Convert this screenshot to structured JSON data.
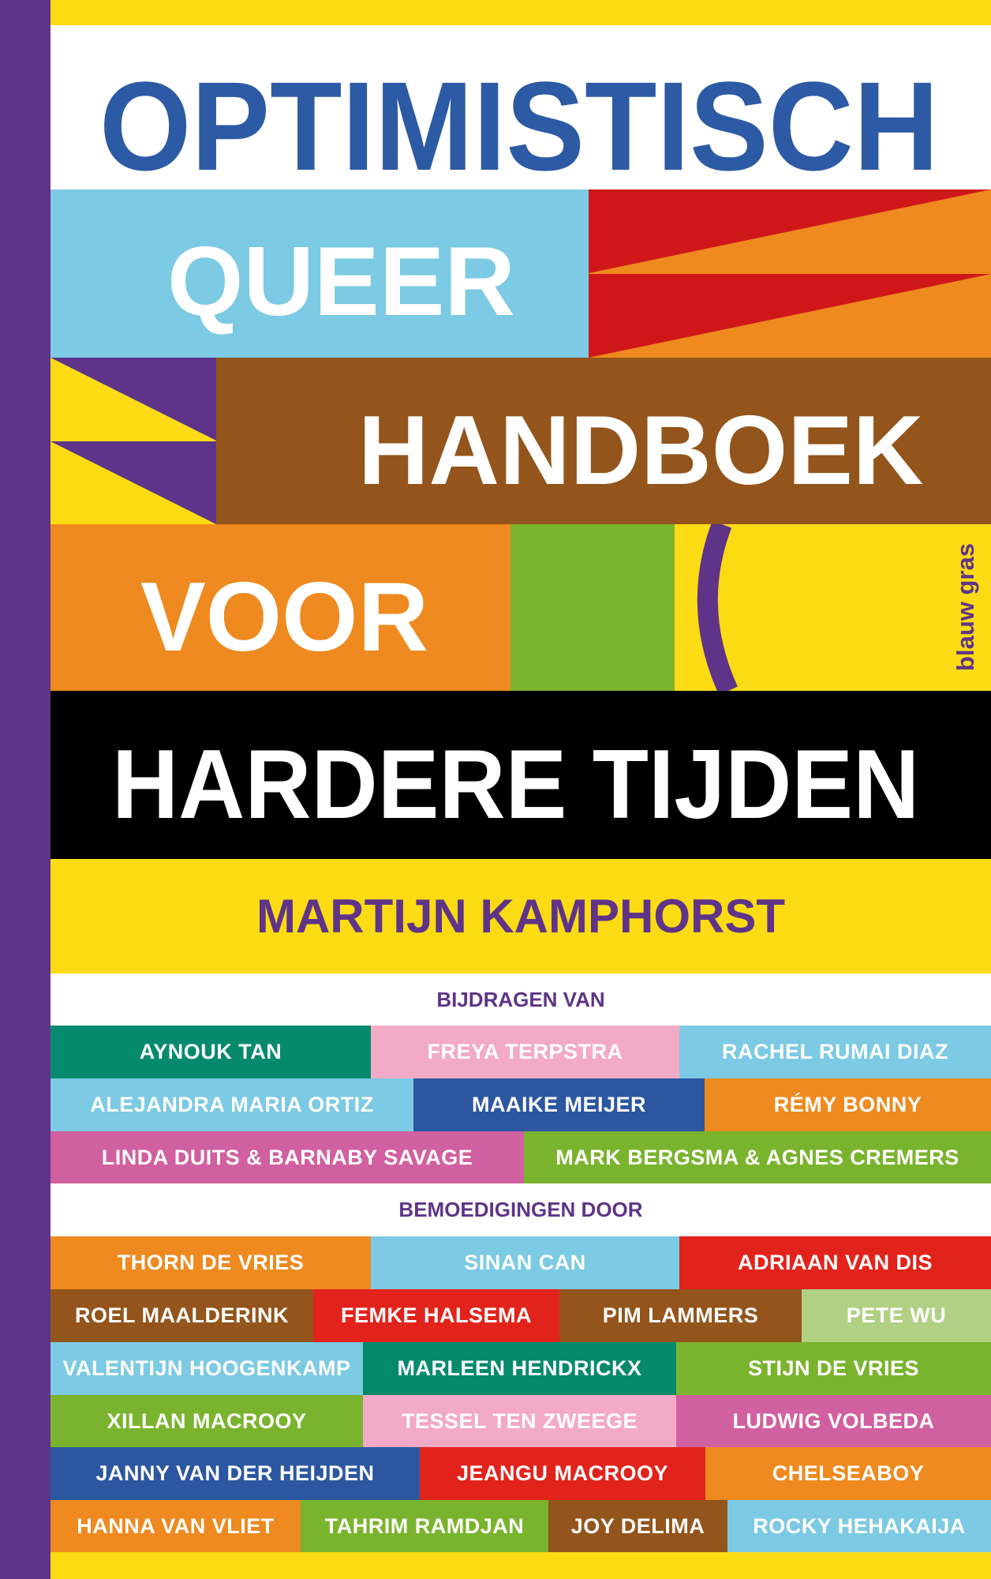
{
  "cover": {
    "title_line1": "OPTIMISTISCH",
    "title_line2": "QUEER",
    "title_line3": "HANDBOEK",
    "title_line4": "VOOR",
    "title_line5": "HARDERE TIJDEN",
    "author": "MARTIJN KAMPHORST",
    "publisher": "blauw gras"
  },
  "contributors": {
    "heading": "BIJDRAGEN VAN",
    "rows": [
      [
        {
          "name": "AYNOUK TAN",
          "color": "#068a6e"
        },
        {
          "name": "FREYA TERPSTRA",
          "color": "#f2aac6"
        },
        {
          "name": "RACHEL RUMAI DIAZ",
          "color": "#7ccae3"
        }
      ],
      [
        {
          "name": "ALEJANDRA MARIA ORTIZ",
          "color": "#7ccae3"
        },
        {
          "name": "MAAIKE MEIJER",
          "color": "#2c57a0"
        },
        {
          "name": "RÉMY BONNY",
          "color": "#ee8a1f"
        }
      ],
      [
        {
          "name": "LINDA DUITS & BARNABY SAVAGE",
          "color": "#d160a0"
        },
        {
          "name": "MARK BERGSMA & AGNES CREMERS",
          "color": "#7ab42e"
        }
      ]
    ]
  },
  "encouragements": {
    "heading": "BEMOEDIGINGEN DOOR",
    "rows": [
      [
        {
          "name": "THORN DE VRIES",
          "color": "#ee8a1f"
        },
        {
          "name": "SINAN CAN",
          "color": "#7ccae3"
        },
        {
          "name": "ADRIAAN VAN DIS",
          "color": "#e2231b"
        }
      ],
      [
        {
          "name": "ROEL MAALDERINK",
          "color": "#93551b"
        },
        {
          "name": "FEMKE HALSEMA",
          "color": "#e2231b"
        },
        {
          "name": "PIM LAMMERS",
          "color": "#93551b"
        },
        {
          "name": "PETE WU",
          "color": "#b0d184"
        }
      ],
      [
        {
          "name": "VALENTIJN HOOGENKAMP",
          "color": "#7ccae3"
        },
        {
          "name": "MARLEEN HENDRICKX",
          "color": "#068a6e"
        },
        {
          "name": "STIJN DE VRIES",
          "color": "#7ab42e"
        }
      ],
      [
        {
          "name": "XILLAN MACROOY",
          "color": "#7ab42e"
        },
        {
          "name": "TESSEL TEN ZWEEGE",
          "color": "#f2aac6"
        },
        {
          "name": "LUDWIG VOLBEDA",
          "color": "#d160a0"
        }
      ],
      [
        {
          "name": "JANNY VAN DER HEIJDEN",
          "color": "#2c57a0"
        },
        {
          "name": "JEANGU MACROOY",
          "color": "#e2231b"
        },
        {
          "name": "CHELSEABOY",
          "color": "#ee8a1f"
        }
      ],
      [
        {
          "name": "HANNA VAN VLIET",
          "color": "#ee8a1f"
        },
        {
          "name": "TAHRIM RAMDJAN",
          "color": "#7ab42e"
        },
        {
          "name": "JOY DELIMA",
          "color": "#93551b"
        },
        {
          "name": "ROCKY HEHAKAIJA",
          "color": "#7ccae3"
        }
      ]
    ]
  },
  "colors": {
    "spine": "#5f3488",
    "yellow": "#fbdb14",
    "title_blue": "#2d5aa5",
    "light_blue": "#7ccae3",
    "red": "#cf1719",
    "orange": "#ee8a1f",
    "brown": "#93551b",
    "green": "#7ab42e",
    "purple": "#5f3488"
  }
}
